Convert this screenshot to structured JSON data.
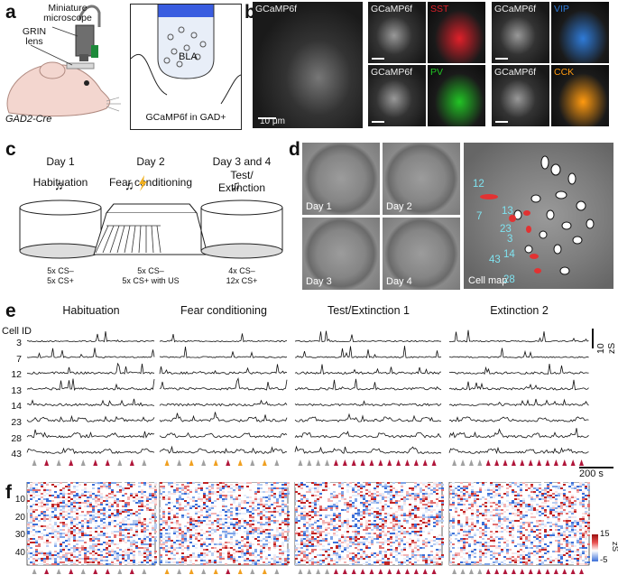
{
  "panel_a": {
    "label": "a",
    "microscope_label_1": "Miniature",
    "microscope_label_2": "microscope",
    "grin_label_1": "GRIN",
    "grin_label_2": "lens",
    "mouse_label": "GAD2-Cre",
    "bla_label": "BLA",
    "box_caption": "GCaMP6f in GAD+"
  },
  "panel_b": {
    "label": "b",
    "main_title": "GCaMP6f",
    "scale_label": "10 μm",
    "tiles": [
      {
        "left": "GCaMP6f",
        "right": "SST",
        "color": "#e0202a"
      },
      {
        "left": "GCaMP6f",
        "right": "VIP",
        "color": "#2f7bd8"
      },
      {
        "left": "GCaMP6f",
        "right": "PV",
        "color": "#22c425"
      },
      {
        "left": "GCaMP6f",
        "right": "CCK",
        "color": "#ff9a10"
      }
    ]
  },
  "panel_c": {
    "label": "c",
    "days": [
      {
        "day": "Day 1",
        "phase1": "Habituation",
        "phase2": "",
        "count1": "5x CS–",
        "count2": "5x CS+"
      },
      {
        "day": "Day 2",
        "phase1": "Fear conditioning",
        "phase2": "",
        "count1": "5x CS–",
        "count2": "5x CS+ with US"
      },
      {
        "day": "Day 3 and 4",
        "phase1": "Test/",
        "phase2": "Extinction",
        "count1": "4x CS–",
        "count2": "12x CS+"
      }
    ]
  },
  "panel_d": {
    "label": "d",
    "tiles": [
      "Day 1",
      "Day 2",
      "Day 3",
      "Day 4"
    ],
    "map_label": "Cell map",
    "cell_numbers": [
      "12",
      "7",
      "13",
      "23",
      "3",
      "14",
      "43",
      "28"
    ]
  },
  "panel_e": {
    "label": "e",
    "cell_id_header": "Cell ID",
    "sessions": [
      "Habituation",
      "Fear conditioning",
      "Test/Extinction 1",
      "Extinction 2"
    ],
    "cell_ids": [
      "3",
      "7",
      "12",
      "13",
      "14",
      "23",
      "28",
      "43"
    ],
    "vertical_scale": "10 zS",
    "time_scale": "200 s"
  },
  "panel_f": {
    "label": "f",
    "row_ticks": [
      "10",
      "20",
      "30",
      "40"
    ],
    "colorbar_max": "15",
    "colorbar_min": "-5",
    "colorbar_unit": "zS"
  },
  "stimulus_colors": {
    "cs_minus": "#a0a0a0",
    "cs_plus": "#b0163a",
    "us": "#f0a020"
  }
}
